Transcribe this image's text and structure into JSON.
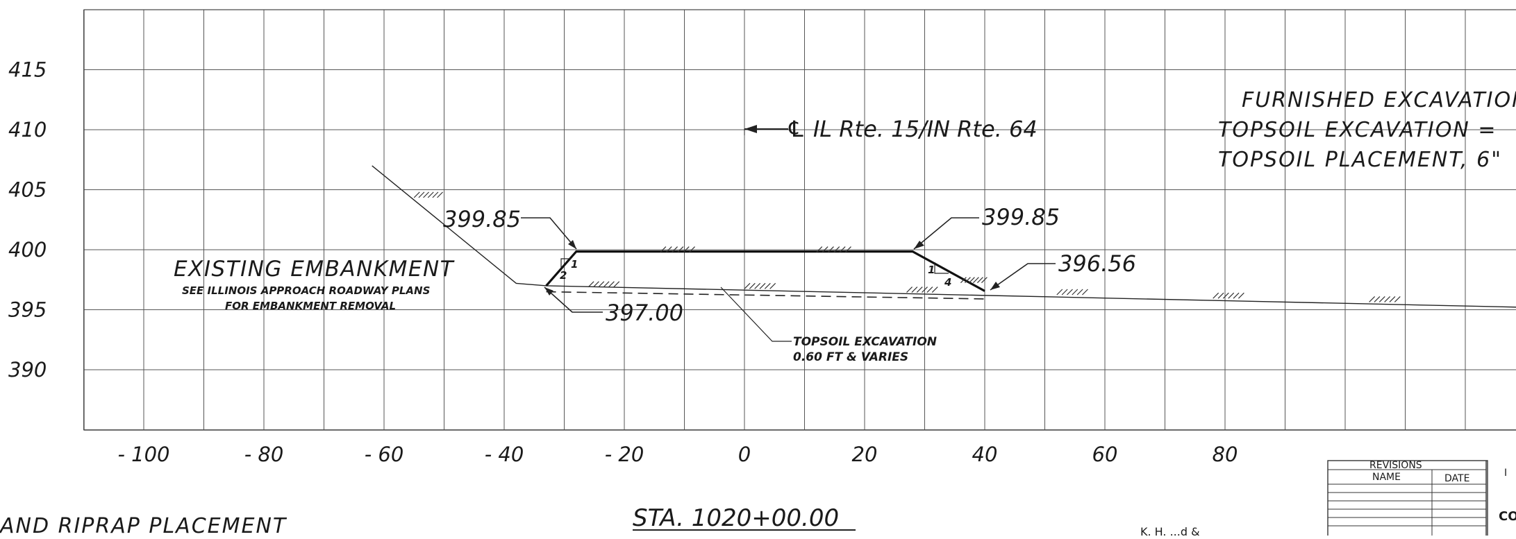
{
  "chart_data": {
    "type": "cross-section",
    "y_ticks": [
      "415",
      "410",
      "405",
      "400",
      "395",
      "390"
    ],
    "x_ticks": [
      "- 100",
      "- 80",
      "- 60",
      "- 40",
      "- 20",
      "0",
      "20",
      "40",
      "60",
      "80"
    ],
    "ylim": [
      385,
      420
    ],
    "xlim": [
      -110,
      130
    ],
    "proposed_section": [
      [
        -33,
        397.0
      ],
      [
        -28,
        399.85
      ],
      [
        28,
        399.85
      ],
      [
        40,
        396.56
      ]
    ],
    "existing_ground": [
      [
        -62,
        407.0
      ],
      [
        -38,
        397.2
      ],
      [
        -33,
        397.0
      ],
      [
        130,
        395.2
      ]
    ],
    "topsoil_bottom": [
      [
        -33,
        396.5
      ],
      [
        40,
        395.9
      ]
    ],
    "elevation_labels": [
      "399.85",
      "399.85",
      "396.56",
      "397.00"
    ],
    "centerline_label": "℄ IL Rte. 15/IN Rte. 64",
    "existing_embankment": {
      "title": "EXISTING EMBANKMENT",
      "line1": "SEE ILLINOIS APPROACH ROADWAY PLANS",
      "line2": "FOR EMBANKMENT REMOVAL"
    },
    "topsoil_note": {
      "line1": "TOPSOIL EXCAVATION",
      "line2": "0.60 FT & VARIES"
    },
    "slope_left": {
      "rise": "1",
      "run": "2"
    },
    "slope_right": {
      "rise": "1",
      "run": "4"
    },
    "quantities": [
      "FURNISHED EXCAVATION",
      "TOPSOIL EXCAVATION =",
      "TOPSOIL PLACEMENT, 6\""
    ]
  },
  "station_title": "STA. 1020+00.00",
  "bottom_left_caption": "AND RIPRAP PLACEMENT",
  "title_block": {
    "revisions": "REVISIONS",
    "name": "NAME",
    "date": "DATE",
    "side_text": "I",
    "side_text_2": "CO",
    "partial_text": "K. H. ...d &"
  }
}
